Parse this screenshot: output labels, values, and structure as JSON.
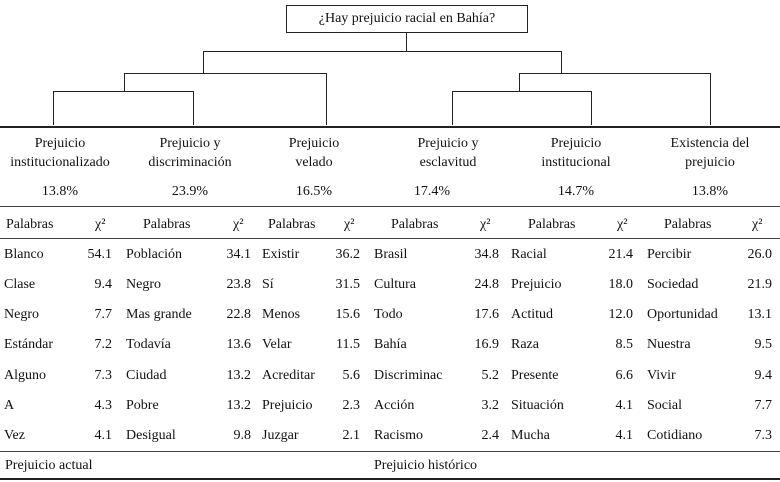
{
  "title": "¿Hay prejuicio racial en Bahía?",
  "header": {
    "word_label": "Palabras",
    "stat_label": "χ²"
  },
  "clusters": [
    {
      "name": [
        "Prejuicio",
        "institucionalizado"
      ],
      "percent": "13.8%",
      "rows": [
        [
          "Blanco",
          "54.1"
        ],
        [
          "Clase",
          "9.4"
        ],
        [
          "Negro",
          "7.7"
        ],
        [
          "Estándar",
          "7.2"
        ],
        [
          "Alguno",
          "7.3"
        ],
        [
          "A",
          "4.3"
        ],
        [
          "Vez",
          "4.1"
        ]
      ]
    },
    {
      "name": [
        "Prejuicio y",
        "discriminación"
      ],
      "percent": "23.9%",
      "rows": [
        [
          "Población",
          "34.1"
        ],
        [
          "Negro",
          "23.8"
        ],
        [
          "Mas grande",
          "22.8"
        ],
        [
          "Todavía",
          "13.6"
        ],
        [
          "Ciudad",
          "13.2"
        ],
        [
          "Pobre",
          "13.2"
        ],
        [
          "Desigual",
          "9.8"
        ]
      ]
    },
    {
      "name": [
        "Prejuicio",
        "velado"
      ],
      "percent": "16.5%",
      "rows": [
        [
          "Existir",
          "36.2"
        ],
        [
          "Sí",
          "31.5"
        ],
        [
          "Menos",
          "15.6"
        ],
        [
          "Velar",
          "11.5"
        ],
        [
          "Acreditar",
          "5.6"
        ],
        [
          "Prejuicio",
          "2.3"
        ],
        [
          "Juzgar",
          "2.1"
        ]
      ]
    },
    {
      "name": [
        "Prejuicio y",
        "esclavitud"
      ],
      "percent": "17.4%",
      "rows": [
        [
          "Brasil",
          "34.8"
        ],
        [
          "Cultura",
          "24.8"
        ],
        [
          "Todo",
          "17.6"
        ],
        [
          "Bahía",
          "16.9"
        ],
        [
          "Discriminac",
          "5.2"
        ],
        [
          "Acción",
          "3.2"
        ],
        [
          "Racismo",
          "2.4"
        ]
      ]
    },
    {
      "name": [
        "Prejuicio",
        "institucional"
      ],
      "percent": "14.7%",
      "rows": [
        [
          "Racial",
          "21.4"
        ],
        [
          "Prejuicio",
          "18.0"
        ],
        [
          "Actitud",
          "12.0"
        ],
        [
          "Raza",
          "8.5"
        ],
        [
          "Presente",
          "6.6"
        ],
        [
          "Situación",
          "4.1"
        ],
        [
          "Mucha",
          "4.1"
        ]
      ]
    },
    {
      "name": [
        "Existencia del",
        "prejuicio"
      ],
      "percent": "13.8%",
      "rows": [
        [
          "Percibir",
          "26.0"
        ],
        [
          "Sociedad",
          "21.9"
        ],
        [
          "Oportunidad",
          "13.1"
        ],
        [
          "Nuestra",
          "9.5"
        ],
        [
          "Vivir",
          "9.4"
        ],
        [
          "Social",
          "7.7"
        ],
        [
          "Cotidiano",
          "7.3"
        ]
      ]
    }
  ],
  "footer": {
    "left": "Prejuicio actual",
    "right": "Prejuicio histórico"
  }
}
